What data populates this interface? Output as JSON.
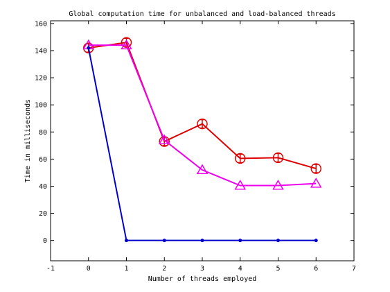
{
  "chart_data": {
    "type": "line",
    "title": "Global computation time for unbalanced and load-balanced threads",
    "xlabel": "Number of threads employed",
    "ylabel": "Time in milliseconds",
    "xlim": [
      -1,
      7
    ],
    "ylim": [
      -15,
      162
    ],
    "xticks": [
      -1,
      0,
      1,
      2,
      3,
      4,
      5,
      6,
      7
    ],
    "yticks": [
      0,
      20,
      40,
      60,
      80,
      100,
      120,
      140,
      160
    ],
    "grid": false,
    "legend": "none",
    "series": [
      {
        "color": "#dd0000",
        "marker": "circle-errorbar",
        "x": [
          0,
          1,
          2,
          3,
          4,
          5,
          6
        ],
        "y": [
          142,
          146,
          73,
          86,
          60.5,
          61,
          53
        ]
      },
      {
        "color": "#ee00ee",
        "marker": "triangle",
        "x": [
          0,
          1,
          2,
          3,
          4,
          5,
          6
        ],
        "y": [
          144,
          144,
          74,
          52,
          40.5,
          40.5,
          42
        ]
      },
      {
        "color": "#0000cc",
        "marker": "dot",
        "x": [
          0,
          1,
          2,
          3,
          4,
          5,
          6
        ],
        "y": [
          142,
          0,
          0,
          0,
          0,
          0,
          0
        ]
      }
    ]
  }
}
